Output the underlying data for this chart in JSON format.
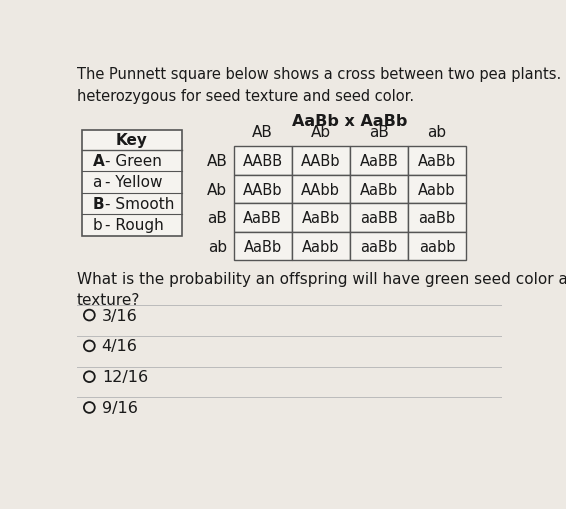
{
  "title_text": "The Punnett square below shows a cross between two pea plants. Both are\nheterozygous for seed texture and seed color.",
  "cross_label": "AaBb x AaBb",
  "col_headers": [
    "AB",
    "Ab",
    "aB",
    "ab"
  ],
  "row_headers": [
    "AB",
    "Ab",
    "aB",
    "ab"
  ],
  "cells": [
    [
      "AABB",
      "AABb",
      "AaBB",
      "AaBb"
    ],
    [
      "AABb",
      "AAbb",
      "AaBb",
      "Aabb"
    ],
    [
      "AaBB",
      "AaBb",
      "aaBB",
      "aaBb"
    ],
    [
      "AaBb",
      "Aabb",
      "aaBb",
      "aabb"
    ]
  ],
  "key_title": "Key",
  "key_rows": [
    [
      "A",
      "- Green"
    ],
    [
      "a",
      "- Yellow"
    ],
    [
      "B",
      "- Smooth"
    ],
    [
      "b",
      "- Rough"
    ]
  ],
  "question": "What is the probability an offspring will have green seed color and rough seed\ntexture?",
  "choices": [
    "3/16",
    "4/16",
    "12/16",
    "9/16"
  ],
  "bg_color": "#ede9e3",
  "table_border_color": "#555555",
  "text_color": "#1a1a1a",
  "key_box_color": "#f5f3ef",
  "cell_bg": "#f5f3ef",
  "separator_color": "#bbbbbb"
}
